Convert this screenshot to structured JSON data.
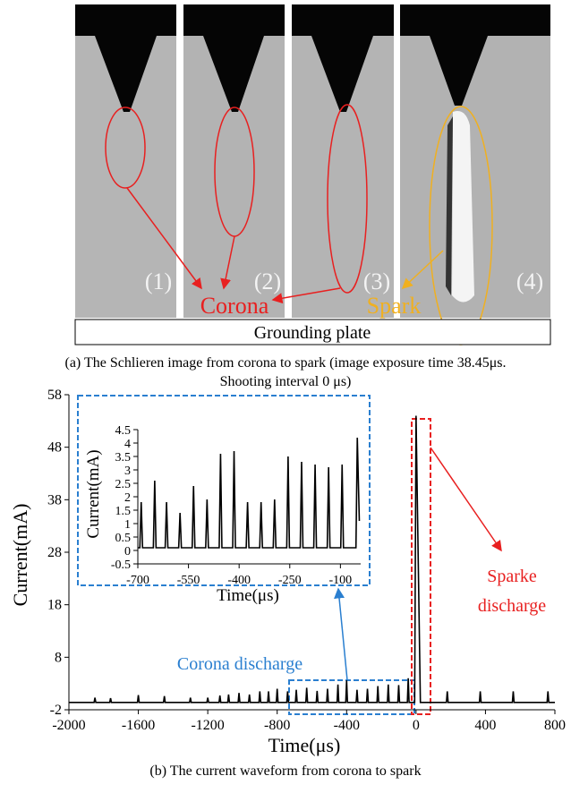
{
  "panel_a": {
    "frame_labels": [
      "(1)",
      "(2)",
      "(3)",
      "(4)"
    ],
    "corona": "Corona",
    "spark": "Spark",
    "plate": "Grounding plate",
    "caption": [
      "(a) The Schlieren image from corona to spark (image exposure time 38.45μs.",
      "Shooting interval 0 μs)"
    ]
  },
  "chart_data": [
    {
      "type": "line",
      "caption": "(b) The current waveform from corona to spark",
      "xlabel": "Time(μs)",
      "ylabel": "Current(mA)",
      "xlim": [
        -2000,
        800
      ],
      "ylim": [
        -2,
        58
      ],
      "xticks": [
        -2000,
        -1600,
        -1200,
        -800,
        -400,
        0,
        400,
        800
      ],
      "yticks": [
        -2,
        8,
        18,
        28,
        38,
        48,
        58
      ],
      "annotations": [
        "Corona discharge",
        "Sparke",
        "discharge"
      ],
      "series": [
        {
          "color": "#000000",
          "x": [
            -2000,
            -1855,
            -1850,
            -1845,
            -1765,
            -1760,
            -1755,
            -1605,
            -1600,
            -1595,
            -1455,
            -1450,
            -1445,
            -1305,
            -1300,
            -1295,
            -1205,
            -1200,
            -1195,
            -1135,
            -1130,
            -1125,
            -1085,
            -1080,
            -1075,
            -1025,
            -1020,
            -1015,
            -965,
            -960,
            -955,
            -905,
            -900,
            -895,
            -855,
            -850,
            -845,
            -805,
            -800,
            -795,
            -745,
            -740,
            -735,
            -695,
            -690,
            -685,
            -635,
            -630,
            -625,
            -575,
            -570,
            -565,
            -515,
            -510,
            -505,
            -455,
            -450,
            -445,
            -405,
            -400,
            -395,
            -345,
            -340,
            -335,
            -285,
            -280,
            -275,
            -225,
            -220,
            -215,
            -165,
            -160,
            -155,
            -105,
            -100,
            -95,
            -50,
            -45,
            -40,
            -8,
            0,
            25,
            175,
            180,
            185,
            365,
            370,
            375,
            555,
            560,
            565,
            755,
            760,
            765,
            800
          ],
          "values": [
            -0.6,
            -0.6,
            0.3,
            -0.6,
            -0.6,
            0.2,
            -0.6,
            -0.6,
            0.8,
            -0.6,
            -0.6,
            0.6,
            -0.6,
            -0.6,
            0.3,
            -0.6,
            -0.6,
            0.3,
            -0.6,
            -0.6,
            0.7,
            -0.6,
            -0.6,
            0.9,
            -0.6,
            -0.6,
            1.2,
            -0.6,
            -0.6,
            0.9,
            -0.6,
            -0.6,
            1.5,
            -0.6,
            -0.6,
            1.5,
            -0.6,
            -0.6,
            2.0,
            -0.6,
            -0.6,
            1.5,
            -0.6,
            -0.6,
            1.8,
            -0.6,
            -0.6,
            2.2,
            -0.6,
            -0.6,
            1.6,
            -0.6,
            -0.6,
            2.0,
            -0.6,
            -0.6,
            2.8,
            -0.6,
            -0.6,
            3.6,
            -0.6,
            -0.6,
            1.8,
            -0.6,
            -0.6,
            2.0,
            -0.6,
            -0.6,
            2.5,
            -0.6,
            -0.6,
            2.8,
            -0.6,
            -0.6,
            2.7,
            -0.6,
            -0.6,
            4.0,
            -0.6,
            -0.6,
            54,
            -0.6,
            -0.6,
            1.5,
            -0.6,
            -0.6,
            1.5,
            -0.6,
            -0.6,
            1.5,
            -0.6,
            -0.6,
            1.5,
            -0.6,
            -0.6
          ]
        }
      ]
    },
    {
      "type": "line",
      "xlabel": "Time(μs)",
      "ylabel": "Current(mA)",
      "xlim": [
        -700,
        -40
      ],
      "ylim": [
        -0.5,
        4.5
      ],
      "xticks": [
        -700,
        -550,
        -400,
        -250,
        -100
      ],
      "yticks": [
        -0.5,
        0,
        0.5,
        1,
        1.5,
        2,
        2.5,
        3,
        3.5,
        4,
        4.5
      ],
      "series": [
        {
          "color": "#000000",
          "x": [
            -700,
            -694,
            -690,
            -686,
            -654,
            -650,
            -646,
            -619,
            -615,
            -611,
            -579,
            -575,
            -571,
            -539,
            -535,
            -531,
            -499,
            -495,
            -491,
            -459,
            -455,
            -451,
            -419,
            -415,
            -411,
            -379,
            -375,
            -371,
            -339,
            -335,
            -331,
            -299,
            -295,
            -291,
            -259,
            -255,
            -251,
            -219,
            -215,
            -211,
            -179,
            -175,
            -171,
            -139,
            -135,
            -131,
            -99,
            -95,
            -91,
            -54,
            -50,
            -44
          ],
          "values": [
            0.1,
            0.1,
            1.8,
            0.1,
            0.1,
            2.6,
            0.1,
            0.1,
            1.8,
            0.1,
            0.1,
            1.4,
            0.1,
            0.1,
            2.4,
            0.1,
            0.1,
            1.9,
            0.1,
            0.1,
            3.6,
            0.1,
            0.1,
            3.7,
            0.1,
            0.1,
            1.8,
            0.1,
            0.1,
            1.8,
            0.1,
            0.1,
            1.9,
            0.1,
            0.1,
            3.5,
            0.1,
            0.1,
            3.3,
            0.1,
            0.1,
            3.2,
            0.1,
            0.1,
            3.1,
            0.1,
            0.1,
            3.2,
            0.1,
            0.1,
            4.2,
            1.1
          ]
        }
      ]
    }
  ]
}
